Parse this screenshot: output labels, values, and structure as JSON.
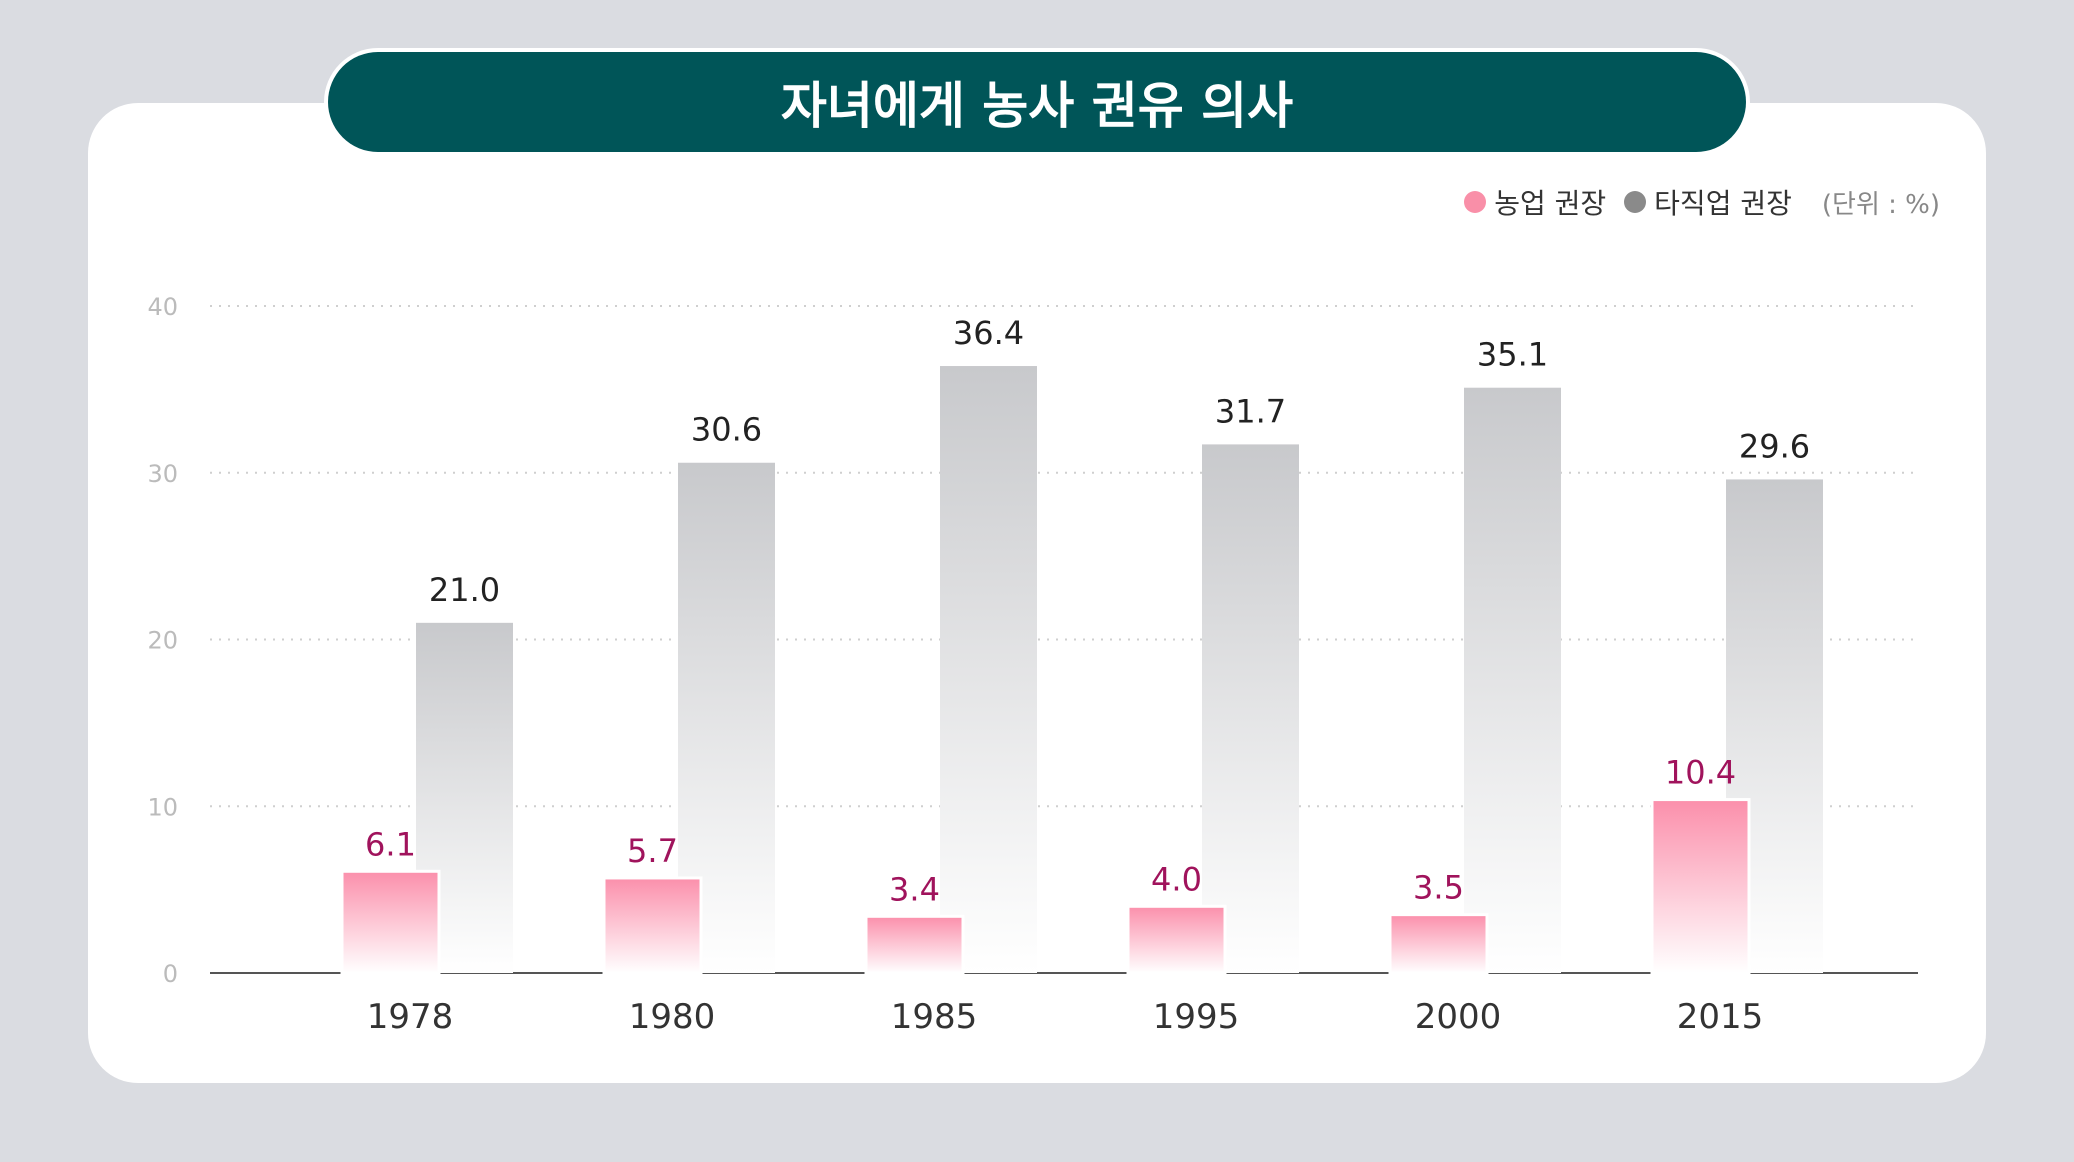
{
  "chart_data": {
    "type": "bar",
    "title": "자녀에게 농사 권유 의사",
    "unit": "(단위 : %)",
    "categories": [
      "1978",
      "1980",
      "1985",
      "1995",
      "2000",
      "2015"
    ],
    "series": [
      {
        "name": "농업 권장",
        "color": "#f98fa8",
        "values": [
          6.1,
          5.7,
          3.4,
          4.0,
          3.5,
          10.4
        ],
        "labels": [
          "6.1",
          "5.7",
          "3.4",
          "4.0",
          "3.5",
          "10.4"
        ]
      },
      {
        "name": "타직업 권장",
        "color": "#8a8a8a",
        "values": [
          21.0,
          30.6,
          36.4,
          31.7,
          35.1,
          29.6
        ],
        "labels": [
          "21.0",
          "30.6",
          "36.4",
          "31.7",
          "35.1",
          "29.6"
        ]
      }
    ],
    "yticks": [
      "0",
      "10",
      "20",
      "30",
      "40"
    ],
    "ylim": [
      0,
      40
    ],
    "grid": true,
    "legend_position": "top-right"
  }
}
